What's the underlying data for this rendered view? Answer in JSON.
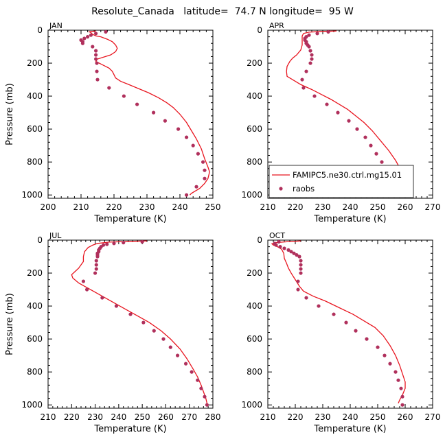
{
  "title": "Resolute_Canada   latitude=  74.7 N longitude=  95 W",
  "legend": {
    "model": "FAMIPC5.ne30.ctrl.mg15.01",
    "obs": "raobs"
  },
  "colors": {
    "model": "#e8141e",
    "obs": "#b0305c"
  },
  "chart_data": [
    {
      "type": "line",
      "panel": "JAN",
      "xlabel": "Temperature (K)",
      "ylabel": "Pressure (mb)",
      "xlim": [
        200,
        250
      ],
      "xticks": [
        200,
        210,
        220,
        230,
        240,
        250
      ],
      "ylim": [
        0,
        1020
      ],
      "yticks": [
        0,
        200,
        400,
        600,
        800,
        1000
      ],
      "series": [
        {
          "kind": "line",
          "points": [
            [
              214.5,
              5
            ],
            [
              213,
              8
            ],
            [
              212.5,
              10
            ],
            [
              213,
              15
            ],
            [
              213.5,
              25
            ],
            [
              214.5,
              35
            ],
            [
              216,
              40
            ],
            [
              218,
              55
            ],
            [
              219.5,
              70
            ],
            [
              220.5,
              90
            ],
            [
              221,
              110
            ],
            [
              220.5,
              130
            ],
            [
              219,
              150
            ],
            [
              215,
              175
            ],
            [
              214.5,
              190
            ],
            [
              216.5,
              210
            ],
            [
              218.5,
              230
            ],
            [
              219.5,
              250
            ],
            [
              220,
              270
            ],
            [
              220.5,
              290
            ],
            [
              222,
              310
            ],
            [
              224.5,
              330
            ],
            [
              227.5,
              355
            ],
            [
              230.5,
              380
            ],
            [
              233.5,
              410
            ],
            [
              236,
              440
            ],
            [
              238,
              470
            ],
            [
              240,
              510
            ],
            [
              242,
              560
            ],
            [
              243.5,
              610
            ],
            [
              245,
              660
            ],
            [
              246.5,
              720
            ],
            [
              247.5,
              780
            ],
            [
              248.5,
              830
            ],
            [
              249,
              860
            ],
            [
              248.5,
              900
            ],
            [
              247.5,
              930
            ],
            [
              246,
              960
            ],
            [
              243.5,
              990
            ],
            [
              243,
              1000
            ]
          ]
        },
        {
          "kind": "scatter",
          "points": [
            [
              217.5,
              10
            ],
            [
              214.5,
              20
            ],
            [
              213,
              30
            ],
            [
              212,
              40
            ],
            [
              211,
              50
            ],
            [
              210,
              60
            ],
            [
              210.5,
              70
            ],
            [
              210.5,
              80
            ],
            [
              213.5,
              100
            ],
            [
              214.5,
              125
            ],
            [
              214.5,
              150
            ],
            [
              214.5,
              175
            ],
            [
              214.8,
              200
            ],
            [
              214.8,
              250
            ],
            [
              215,
              300
            ],
            [
              218.5,
              350
            ],
            [
              223,
              400
            ],
            [
              227,
              450
            ],
            [
              232,
              500
            ],
            [
              235.5,
              550
            ],
            [
              239.5,
              600
            ],
            [
              242,
              650
            ],
            [
              244,
              700
            ],
            [
              245.5,
              750
            ],
            [
              247,
              800
            ],
            [
              247.5,
              850
            ],
            [
              247.5,
              900
            ],
            [
              245,
              950
            ],
            [
              242,
              1000
            ]
          ]
        }
      ]
    },
    {
      "type": "line",
      "panel": "APR",
      "xlabel": "Temperature (K)",
      "ylabel": "",
      "xlim": [
        210,
        270
      ],
      "xticks": [
        210,
        220,
        230,
        240,
        250,
        260,
        270
      ],
      "ylim": [
        0,
        1020
      ],
      "yticks": [
        0,
        200,
        400,
        600,
        800,
        1000
      ],
      "series": [
        {
          "kind": "line",
          "points": [
            [
              235,
              5
            ],
            [
              229,
              8
            ],
            [
              225,
              12
            ],
            [
              223,
              20
            ],
            [
              222.5,
              35
            ],
            [
              222.5,
              60
            ],
            [
              222.5,
              90
            ],
            [
              222,
              120
            ],
            [
              220.5,
              150
            ],
            [
              219,
              170
            ],
            [
              218,
              190
            ],
            [
              217,
              220
            ],
            [
              216.8,
              250
            ],
            [
              217,
              280
            ],
            [
              219,
              300
            ],
            [
              222,
              330
            ],
            [
              226,
              360
            ],
            [
              229.5,
              390
            ],
            [
              233,
              420
            ],
            [
              236,
              450
            ],
            [
              239,
              480
            ],
            [
              242,
              520
            ],
            [
              245,
              560
            ],
            [
              248,
              610
            ],
            [
              251,
              670
            ],
            [
              254,
              730
            ],
            [
              256.5,
              790
            ],
            [
              258.5,
              850
            ],
            [
              260,
              890
            ],
            [
              260.5,
              920
            ],
            [
              259.5,
              950
            ],
            [
              257,
              980
            ],
            [
              254,
              1000
            ],
            [
              253,
              1005
            ]
          ]
        },
        {
          "kind": "scatter",
          "points": [
            [
              232,
              10
            ],
            [
              228,
              20
            ],
            [
              225,
              30
            ],
            [
              224,
              40
            ],
            [
              223.5,
              50
            ],
            [
              223.5,
              60
            ],
            [
              224,
              70
            ],
            [
              224,
              80
            ],
            [
              224.5,
              90
            ],
            [
              225,
              100
            ],
            [
              225.5,
              125
            ],
            [
              226,
              150
            ],
            [
              226,
              175
            ],
            [
              225.5,
              200
            ],
            [
              224,
              250
            ],
            [
              222.5,
              300
            ],
            [
              223,
              350
            ],
            [
              227,
              400
            ],
            [
              231.5,
              450
            ],
            [
              235.5,
              500
            ],
            [
              239.5,
              550
            ],
            [
              242.5,
              600
            ],
            [
              245.5,
              650
            ],
            [
              247.5,
              700
            ],
            [
              249.5,
              750
            ],
            [
              251.5,
              800
            ],
            [
              253,
              850
            ],
            [
              254,
              900
            ],
            [
              253.5,
              950
            ],
            [
              251,
              1000
            ]
          ]
        }
      ]
    },
    {
      "type": "line",
      "panel": "JUL",
      "xlabel": "Temperature (K)",
      "ylabel": "Pressure (mb)",
      "xlim": [
        210,
        280
      ],
      "xticks": [
        210,
        220,
        230,
        240,
        250,
        260,
        270,
        280
      ],
      "ylim": [
        0,
        1020
      ],
      "yticks": [
        0,
        200,
        400,
        600,
        800,
        1000
      ],
      "series": [
        {
          "kind": "line",
          "points": [
            [
              252,
              5
            ],
            [
              244,
              8
            ],
            [
              236,
              12
            ],
            [
              231,
              20
            ],
            [
              229,
              30
            ],
            [
              227,
              45
            ],
            [
              225.5,
              70
            ],
            [
              225,
              100
            ],
            [
              225,
              130
            ],
            [
              224,
              150
            ],
            [
              223,
              170
            ],
            [
              221.5,
              190
            ],
            [
              220,
              210
            ],
            [
              220.5,
              230
            ],
            [
              223,
              260
            ],
            [
              228,
              300
            ],
            [
              233,
              340
            ],
            [
              238,
              380
            ],
            [
              243,
              420
            ],
            [
              248,
              460
            ],
            [
              253,
              500
            ],
            [
              258,
              550
            ],
            [
              262,
              600
            ],
            [
              266,
              660
            ],
            [
              269,
              720
            ],
            [
              271.5,
              780
            ],
            [
              273.5,
              830
            ],
            [
              275,
              880
            ],
            [
              276,
              920
            ],
            [
              277,
              960
            ],
            [
              277.5,
              990
            ],
            [
              278,
              1000
            ]
          ]
        },
        {
          "kind": "scatter",
          "points": [
            [
              250,
              10
            ],
            [
              242,
              15
            ],
            [
              238,
              20
            ],
            [
              235,
              25
            ],
            [
              233.5,
              30
            ],
            [
              232.5,
              40
            ],
            [
              232,
              50
            ],
            [
              231.5,
              60
            ],
            [
              231.5,
              70
            ],
            [
              231,
              80
            ],
            [
              231,
              90
            ],
            [
              231,
              100
            ],
            [
              230.5,
              125
            ],
            [
              230.5,
              150
            ],
            [
              230.5,
              175
            ],
            [
              230,
              200
            ],
            [
              225,
              250
            ],
            [
              226.5,
              300
            ],
            [
              233,
              350
            ],
            [
              239,
              400
            ],
            [
              245,
              450
            ],
            [
              250.5,
              500
            ],
            [
              255,
              550
            ],
            [
              259,
              600
            ],
            [
              262,
              650
            ],
            [
              265,
              700
            ],
            [
              268.5,
              750
            ],
            [
              271,
              800
            ],
            [
              273.5,
              850
            ],
            [
              275,
              900
            ],
            [
              276.5,
              950
            ],
            [
              277.5,
              1000
            ]
          ]
        }
      ]
    },
    {
      "type": "line",
      "panel": "OCT",
      "xlabel": "Temperature (K)",
      "ylabel": "",
      "xlim": [
        210,
        270
      ],
      "xticks": [
        210,
        220,
        230,
        240,
        250,
        260,
        270
      ],
      "ylim": [
        0,
        1020
      ],
      "yticks": [
        0,
        200,
        400,
        600,
        800,
        1000
      ],
      "series": [
        {
          "kind": "line",
          "points": [
            [
              222,
              5
            ],
            [
              217,
              10
            ],
            [
              213,
              15
            ],
            [
              211.5,
              22
            ],
            [
              212,
              30
            ],
            [
              213.5,
              40
            ],
            [
              215,
              55
            ],
            [
              215.8,
              80
            ],
            [
              216,
              110
            ],
            [
              216.8,
              140
            ],
            [
              217.5,
              170
            ],
            [
              218.5,
              200
            ],
            [
              220,
              240
            ],
            [
              221.5,
              280
            ],
            [
              223,
              310
            ],
            [
              226.5,
              340
            ],
            [
              231,
              370
            ],
            [
              236,
              410
            ],
            [
              241,
              450
            ],
            [
              245,
              490
            ],
            [
              249,
              530
            ],
            [
              252,
              580
            ],
            [
              254.5,
              640
            ],
            [
              256.5,
              700
            ],
            [
              258,
              760
            ],
            [
              259,
              810
            ],
            [
              260,
              860
            ],
            [
              260,
              900
            ],
            [
              259,
              940
            ],
            [
              258,
              970
            ],
            [
              257.5,
              990
            ]
          ]
        },
        {
          "kind": "scatter",
          "points": [
            [
              214,
              10
            ],
            [
              212.5,
              20
            ],
            [
              213,
              30
            ],
            [
              214.5,
              40
            ],
            [
              216,
              50
            ],
            [
              217.5,
              60
            ],
            [
              218.5,
              70
            ],
            [
              219.5,
              80
            ],
            [
              220.5,
              90
            ],
            [
              221.5,
              100
            ],
            [
              222,
              125
            ],
            [
              222,
              150
            ],
            [
              222,
              175
            ],
            [
              222,
              200
            ],
            [
              221,
              250
            ],
            [
              221,
              300
            ],
            [
              224,
              350
            ],
            [
              228.5,
              400
            ],
            [
              234,
              450
            ],
            [
              238.5,
              500
            ],
            [
              242,
              550
            ],
            [
              246,
              600
            ],
            [
              250,
              650
            ],
            [
              252.5,
              700
            ],
            [
              254.5,
              750
            ],
            [
              256.5,
              800
            ],
            [
              257.5,
              850
            ],
            [
              258.5,
              900
            ],
            [
              259,
              950
            ],
            [
              259,
              1000
            ]
          ]
        }
      ]
    }
  ]
}
